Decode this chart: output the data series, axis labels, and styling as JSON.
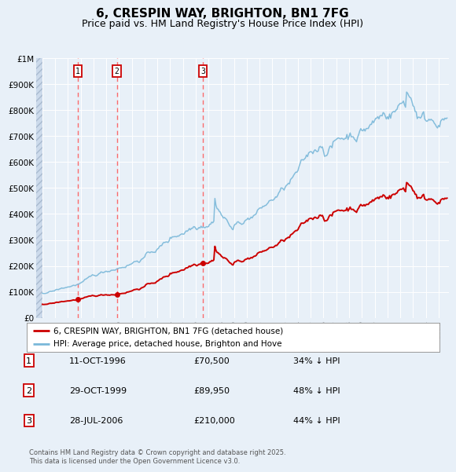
{
  "title": "6, CRESPIN WAY, BRIGHTON, BN1 7FG",
  "subtitle": "Price paid vs. HM Land Registry's House Price Index (HPI)",
  "title_fontsize": 11,
  "subtitle_fontsize": 9,
  "background_color": "#e8f0f8",
  "plot_bg_color": "#e8f0f8",
  "grid_color": "#ffffff",
  "ylim": [
    0,
    1000000
  ],
  "yticks": [
    0,
    100000,
    200000,
    300000,
    400000,
    500000,
    600000,
    700000,
    800000,
    900000,
    1000000
  ],
  "ytick_labels": [
    "£0",
    "£100K",
    "£200K",
    "£300K",
    "£400K",
    "£500K",
    "£600K",
    "£700K",
    "£800K",
    "£900K",
    "£1M"
  ],
  "xlim_start": 1993.5,
  "xlim_end": 2025.8,
  "sale_dates": [
    1996.78,
    1999.83,
    2006.56
  ],
  "sale_prices": [
    70500,
    89950,
    210000
  ],
  "sale_labels": [
    "1",
    "2",
    "3"
  ],
  "red_line_color": "#cc0000",
  "blue_line_color": "#7ab8d9",
  "marker_color": "#cc0000",
  "vline_color": "#ff5555",
  "legend_entries": [
    "6, CRESPIN WAY, BRIGHTON, BN1 7FG (detached house)",
    "HPI: Average price, detached house, Brighton and Hove"
  ],
  "table_rows": [
    [
      "1",
      "11-OCT-1996",
      "£70,500",
      "34% ↓ HPI"
    ],
    [
      "2",
      "29-OCT-1999",
      "£89,950",
      "48% ↓ HPI"
    ],
    [
      "3",
      "28-JUL-2006",
      "£210,000",
      "44% ↓ HPI"
    ]
  ],
  "footer": "Contains HM Land Registry data © Crown copyright and database right 2025.\nThis data is licensed under the Open Government Licence v3.0."
}
